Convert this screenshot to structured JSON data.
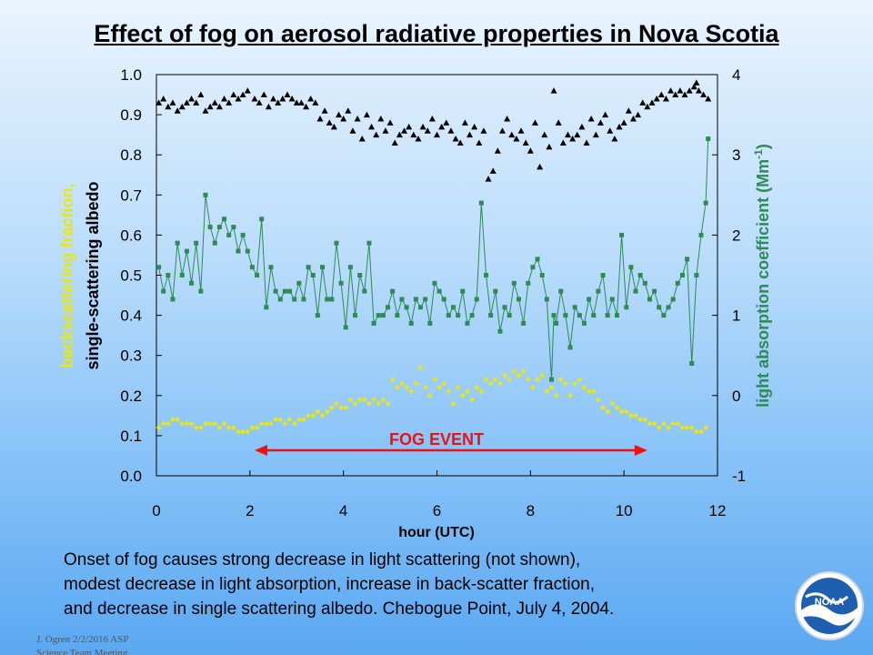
{
  "title": "Effect of fog on aerosol radiative properties in Nova Scotia",
  "chart_data": {
    "type": "scatter",
    "xlabel": "hour (UTC)",
    "xlim": [
      0,
      12
    ],
    "x_ticks": [
      "0",
      "2",
      "4",
      "6",
      "8",
      "10",
      "12"
    ],
    "ylabel_left_line1": "backscattering fraction,",
    "ylabel_left_line2": "single-scattering albedo",
    "ylim_left": [
      0.0,
      1.0
    ],
    "y_ticks_left": [
      "0.0",
      "0.1",
      "0.2",
      "0.3",
      "0.4",
      "0.5",
      "0.6",
      "0.7",
      "0.8",
      "0.9",
      "1.0"
    ],
    "ylabel_right": "light absorption coefficient (Mm",
    "ylabel_right_sup": "-1",
    "ylabel_right_close": ")",
    "ylim_right": [
      -1,
      4
    ],
    "y_ticks_right": [
      "-1",
      "0",
      "1",
      "2",
      "3",
      "4"
    ],
    "annotation": "FOG EVENT",
    "fog_event_range": [
      2.1,
      10.5
    ],
    "colors": {
      "albedo": "#000000",
      "absorption": "#2e8b57",
      "backscatter": "#e6e619",
      "arrow": "#ee1111"
    },
    "series": [
      {
        "key": "albedo",
        "axis": "left",
        "marker": "triangle",
        "x": [
          0.05,
          0.15,
          0.25,
          0.35,
          0.45,
          0.55,
          0.65,
          0.75,
          0.85,
          0.95,
          1.05,
          1.15,
          1.25,
          1.35,
          1.45,
          1.55,
          1.65,
          1.75,
          1.85,
          1.95,
          2.1,
          2.2,
          2.3,
          2.4,
          2.5,
          2.6,
          2.7,
          2.8,
          2.9,
          3.0,
          3.1,
          3.2,
          3.3,
          3.4,
          3.5,
          3.6,
          3.7,
          3.8,
          3.9,
          4.0,
          4.1,
          4.2,
          4.3,
          4.4,
          4.5,
          4.6,
          4.7,
          4.8,
          4.9,
          5.0,
          5.1,
          5.2,
          5.3,
          5.4,
          5.5,
          5.6,
          5.7,
          5.8,
          5.9,
          6.0,
          6.1,
          6.2,
          6.3,
          6.4,
          6.5,
          6.6,
          6.7,
          6.8,
          6.9,
          7.0,
          7.1,
          7.2,
          7.3,
          7.4,
          7.5,
          7.6,
          7.7,
          7.8,
          7.9,
          8.0,
          8.1,
          8.2,
          8.3,
          8.4,
          8.5,
          8.6,
          8.7,
          8.8,
          8.9,
          9.0,
          9.1,
          9.2,
          9.3,
          9.4,
          9.5,
          9.6,
          9.7,
          9.8,
          9.9,
          10.0,
          10.1,
          10.2,
          10.3,
          10.4,
          10.5,
          10.6,
          10.7,
          10.8,
          10.9,
          11.0,
          11.1,
          11.2,
          11.3,
          11.4,
          11.5,
          11.55,
          11.6,
          11.7,
          11.8
        ],
        "y": [
          0.93,
          0.94,
          0.92,
          0.93,
          0.91,
          0.92,
          0.93,
          0.94,
          0.93,
          0.95,
          0.91,
          0.92,
          0.93,
          0.92,
          0.94,
          0.93,
          0.95,
          0.94,
          0.95,
          0.96,
          0.94,
          0.93,
          0.95,
          0.92,
          0.94,
          0.93,
          0.94,
          0.95,
          0.94,
          0.93,
          0.93,
          0.92,
          0.94,
          0.93,
          0.89,
          0.91,
          0.88,
          0.87,
          0.9,
          0.89,
          0.91,
          0.86,
          0.89,
          0.84,
          0.9,
          0.87,
          0.85,
          0.89,
          0.86,
          0.88,
          0.83,
          0.85,
          0.86,
          0.87,
          0.85,
          0.84,
          0.87,
          0.86,
          0.89,
          0.85,
          0.87,
          0.88,
          0.86,
          0.84,
          0.83,
          0.88,
          0.85,
          0.87,
          0.83,
          0.86,
          0.74,
          0.76,
          0.81,
          0.86,
          0.89,
          0.85,
          0.84,
          0.86,
          0.83,
          0.81,
          0.88,
          0.77,
          0.85,
          0.82,
          0.96,
          0.88,
          0.83,
          0.85,
          0.84,
          0.85,
          0.87,
          0.83,
          0.89,
          0.85,
          0.88,
          0.9,
          0.86,
          0.84,
          0.87,
          0.88,
          0.91,
          0.89,
          0.9,
          0.93,
          0.92,
          0.93,
          0.94,
          0.95,
          0.94,
          0.96,
          0.95,
          0.96,
          0.95,
          0.96,
          0.97,
          0.98,
          0.96,
          0.95,
          0.94
        ]
      },
      {
        "key": "absorption",
        "axis": "right",
        "marker": "square",
        "x": [
          0.05,
          0.15,
          0.25,
          0.35,
          0.45,
          0.55,
          0.65,
          0.75,
          0.85,
          0.95,
          1.05,
          1.15,
          1.25,
          1.35,
          1.45,
          1.55,
          1.65,
          1.75,
          1.85,
          1.95,
          2.05,
          2.15,
          2.25,
          2.35,
          2.45,
          2.55,
          2.65,
          2.75,
          2.85,
          2.95,
          3.05,
          3.15,
          3.25,
          3.35,
          3.45,
          3.55,
          3.65,
          3.75,
          3.85,
          3.95,
          4.05,
          4.15,
          4.25,
          4.35,
          4.45,
          4.55,
          4.65,
          4.75,
          4.85,
          4.95,
          5.05,
          5.15,
          5.25,
          5.35,
          5.45,
          5.55,
          5.65,
          5.75,
          5.85,
          5.95,
          6.05,
          6.15,
          6.25,
          6.35,
          6.45,
          6.55,
          6.65,
          6.75,
          6.85,
          6.95,
          7.05,
          7.15,
          7.25,
          7.35,
          7.45,
          7.55,
          7.65,
          7.75,
          7.85,
          7.95,
          8.05,
          8.15,
          8.25,
          8.35,
          8.45,
          8.5,
          8.55,
          8.65,
          8.75,
          8.85,
          8.95,
          9.05,
          9.15,
          9.25,
          9.35,
          9.45,
          9.55,
          9.65,
          9.75,
          9.85,
          9.95,
          10.05,
          10.15,
          10.25,
          10.35,
          10.45,
          10.55,
          10.65,
          10.75,
          10.85,
          10.95,
          11.05,
          11.15,
          11.25,
          11.35,
          11.45,
          11.55,
          11.65,
          11.75,
          11.8
        ],
        "y": [
          1.6,
          1.3,
          1.5,
          1.2,
          1.9,
          1.5,
          1.8,
          1.4,
          1.9,
          1.3,
          2.5,
          2.1,
          1.9,
          2.1,
          2.2,
          2.0,
          2.1,
          1.8,
          2.0,
          1.8,
          1.6,
          1.5,
          2.2,
          1.1,
          1.6,
          1.3,
          1.2,
          1.3,
          1.3,
          1.2,
          1.4,
          1.2,
          1.6,
          1.5,
          1.0,
          1.6,
          1.2,
          1.2,
          1.9,
          1.4,
          0.85,
          1.6,
          1.0,
          1.5,
          1.3,
          1.9,
          0.9,
          1.0,
          1.0,
          1.1,
          1.3,
          1.0,
          1.2,
          1.1,
          0.9,
          1.2,
          1.1,
          1.2,
          0.9,
          1.4,
          1.3,
          1.2,
          1.0,
          1.1,
          1.0,
          1.3,
          0.9,
          1.0,
          1.2,
          2.4,
          1.5,
          1.0,
          1.3,
          0.8,
          1.1,
          1.0,
          1.4,
          1.2,
          0.9,
          1.4,
          1.6,
          1.7,
          1.5,
          1.2,
          0.2,
          1.0,
          0.9,
          1.3,
          1.0,
          0.6,
          1.1,
          1.0,
          0.9,
          1.2,
          1.0,
          1.3,
          1.5,
          1.0,
          1.2,
          1.0,
          2.0,
          1.1,
          1.6,
          1.3,
          1.5,
          1.4,
          1.2,
          1.3,
          1.1,
          1.0,
          1.1,
          1.2,
          1.4,
          1.5,
          1.7,
          0.4,
          1.5,
          2.0,
          2.4,
          3.2
        ]
      },
      {
        "key": "backscatter",
        "axis": "left",
        "marker": "diamond",
        "x": [
          0.05,
          0.15,
          0.25,
          0.35,
          0.45,
          0.55,
          0.65,
          0.75,
          0.85,
          0.95,
          1.05,
          1.15,
          1.25,
          1.35,
          1.45,
          1.55,
          1.65,
          1.75,
          1.85,
          1.95,
          2.05,
          2.15,
          2.25,
          2.35,
          2.45,
          2.55,
          2.65,
          2.75,
          2.85,
          2.95,
          3.05,
          3.15,
          3.25,
          3.35,
          3.45,
          3.55,
          3.65,
          3.75,
          3.85,
          3.95,
          4.05,
          4.15,
          4.25,
          4.35,
          4.45,
          4.55,
          4.65,
          4.75,
          4.85,
          4.95,
          5.05,
          5.15,
          5.25,
          5.35,
          5.45,
          5.55,
          5.65,
          5.75,
          5.85,
          5.95,
          6.05,
          6.15,
          6.25,
          6.35,
          6.45,
          6.55,
          6.65,
          6.75,
          6.85,
          6.95,
          7.05,
          7.15,
          7.25,
          7.35,
          7.45,
          7.55,
          7.65,
          7.75,
          7.85,
          7.95,
          8.05,
          8.15,
          8.25,
          8.35,
          8.45,
          8.55,
          8.65,
          8.75,
          8.85,
          8.95,
          9.05,
          9.15,
          9.25,
          9.35,
          9.45,
          9.55,
          9.65,
          9.75,
          9.85,
          9.95,
          10.05,
          10.15,
          10.25,
          10.35,
          10.45,
          10.55,
          10.65,
          10.75,
          10.85,
          10.95,
          11.05,
          11.15,
          11.25,
          11.35,
          11.45,
          11.55,
          11.65,
          11.75
        ],
        "y": [
          0.12,
          0.13,
          0.13,
          0.14,
          0.14,
          0.13,
          0.13,
          0.13,
          0.12,
          0.12,
          0.13,
          0.13,
          0.13,
          0.12,
          0.13,
          0.12,
          0.12,
          0.11,
          0.11,
          0.11,
          0.12,
          0.12,
          0.13,
          0.13,
          0.13,
          0.14,
          0.14,
          0.13,
          0.14,
          0.13,
          0.14,
          0.14,
          0.15,
          0.15,
          0.16,
          0.15,
          0.16,
          0.17,
          0.18,
          0.17,
          0.17,
          0.19,
          0.18,
          0.19,
          0.19,
          0.18,
          0.19,
          0.18,
          0.19,
          0.18,
          0.24,
          0.22,
          0.23,
          0.22,
          0.21,
          0.23,
          0.27,
          0.22,
          0.2,
          0.24,
          0.22,
          0.23,
          0.21,
          0.18,
          0.22,
          0.2,
          0.21,
          0.19,
          0.22,
          0.21,
          0.24,
          0.23,
          0.24,
          0.23,
          0.25,
          0.24,
          0.26,
          0.25,
          0.26,
          0.24,
          0.22,
          0.24,
          0.25,
          0.21,
          0.22,
          0.2,
          0.24,
          0.23,
          0.2,
          0.23,
          0.24,
          0.22,
          0.21,
          0.21,
          0.19,
          0.17,
          0.16,
          0.18,
          0.17,
          0.16,
          0.16,
          0.15,
          0.15,
          0.14,
          0.14,
          0.13,
          0.13,
          0.12,
          0.13,
          0.12,
          0.13,
          0.13,
          0.12,
          0.12,
          0.12,
          0.11,
          0.11,
          0.12
        ]
      }
    ]
  },
  "caption": {
    "line1": "Onset of fog causes strong decrease in light scattering (not shown),",
    "line2": "modest decrease in light absorption, increase in back-scatter fraction,",
    "line3": "and decrease in single scattering albedo.   Chebogue Point, July 4, 2004."
  },
  "credit": {
    "line1": "J. Ogren  2/2/2016 ASP",
    "line2": "Science Team Meeting"
  },
  "logo": {
    "text": "NOAA",
    "icon": "noaa-logo-icon"
  }
}
